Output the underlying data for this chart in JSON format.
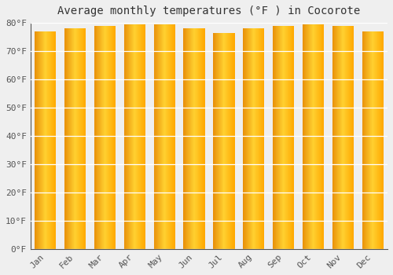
{
  "title": "Average monthly temperatures (°F ) in Cocorote",
  "months": [
    "Jan",
    "Feb",
    "Mar",
    "Apr",
    "May",
    "Jun",
    "Jul",
    "Aug",
    "Sep",
    "Oct",
    "Nov",
    "Dec"
  ],
  "values": [
    77.0,
    78.0,
    79.0,
    79.5,
    79.5,
    78.0,
    76.5,
    78.0,
    79.0,
    79.5,
    79.0,
    77.0
  ],
  "bar_color_left": "#E8900A",
  "bar_color_mid": "#FFC820",
  "bar_color_right": "#FFB800",
  "ylim": [
    0,
    80
  ],
  "yticks": [
    0,
    10,
    20,
    30,
    40,
    50,
    60,
    70,
    80
  ],
  "bg_color": "#efefef",
  "grid_color": "#ffffff",
  "title_fontsize": 10,
  "tick_fontsize": 8,
  "font_family": "monospace"
}
